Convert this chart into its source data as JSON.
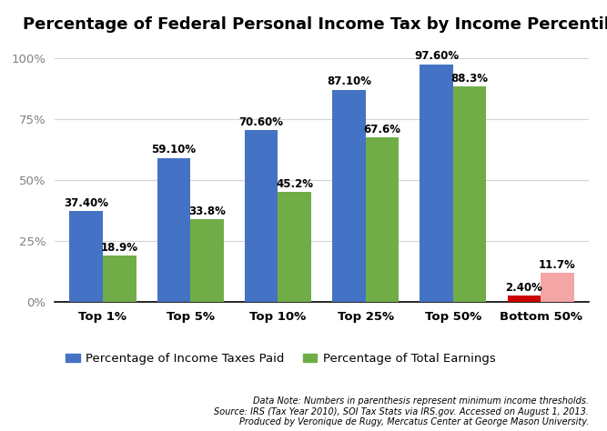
{
  "title": "Percentage of Federal Personal Income Tax by Income Percentile",
  "categories": [
    "Top 1%",
    "Top 5%",
    "Top 10%",
    "Top 25%",
    "Top 50%",
    "Bottom 50%"
  ],
  "income_taxes_paid": [
    37.4,
    59.1,
    70.6,
    87.1,
    97.6,
    2.4
  ],
  "total_earnings": [
    18.9,
    33.8,
    45.2,
    67.6,
    88.3,
    11.7
  ],
  "income_taxes_paid_labels": [
    "37.40%",
    "59.10%",
    "70.60%",
    "87.10%",
    "97.60%",
    "2.40%"
  ],
  "total_earnings_labels": [
    "18.9%",
    "33.8%",
    "45.2%",
    "67.6%",
    "88.3%",
    "11.7%"
  ],
  "bar_color_blue": "#4472C4",
  "bar_color_green": "#70AD47",
  "bar_color_red": "#CC0000",
  "bar_color_pink": "#F4A5A5",
  "legend_label_blue": "Percentage of Income Taxes Paid",
  "legend_label_green": "Percentage of Total Earnings",
  "yticks": [
    0,
    25,
    50,
    75,
    100
  ],
  "ytick_labels": [
    "0%",
    "25%",
    "50%",
    "75%",
    "100%"
  ],
  "footer_lines": [
    "Data Note: Numbers in parenthesis represent minimum income thresholds.",
    "Source: IRS (Tax Year 2010), SOI Tax Stats via IRS.gov. Accessed on August 1, 2013.",
    "Produced by Veronique de Rugy, Mercatus Center at George Mason University."
  ],
  "background_color": "#FFFFFF",
  "title_fontsize": 13,
  "label_fontsize": 8.5,
  "tick_fontsize": 9.5,
  "legend_fontsize": 9.5,
  "footer_fontsize": 7
}
